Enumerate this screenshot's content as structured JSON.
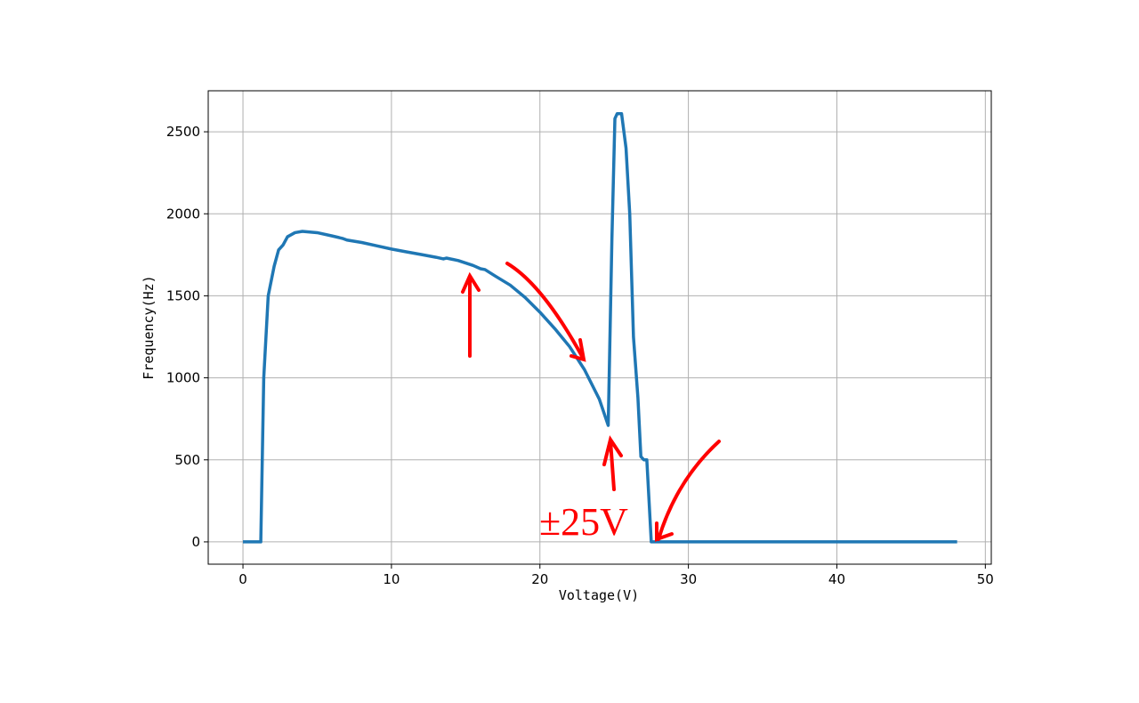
{
  "chart_data": {
    "type": "line",
    "x": [
      0,
      1.2,
      1.4,
      1.7,
      2.1,
      2.4,
      2.7,
      3.0,
      3.5,
      4.0,
      5.0,
      6.0,
      6.7,
      7.0,
      8,
      9,
      10,
      11,
      12,
      13,
      13.5,
      13.7,
      14.5,
      15,
      15.5,
      16,
      16.3,
      17,
      18,
      19,
      20,
      21,
      22,
      23,
      24,
      24.6,
      24.85,
      25.05,
      25.2,
      25.5,
      25.8,
      26.05,
      26.3,
      26.6,
      26.8,
      27.0,
      27.2,
      27.5,
      48.1
    ],
    "values": [
      0,
      0,
      1000,
      1500,
      1680,
      1780,
      1810,
      1860,
      1885,
      1893,
      1885,
      1865,
      1850,
      1840,
      1825,
      1805,
      1785,
      1768,
      1752,
      1735,
      1725,
      1730,
      1715,
      1700,
      1685,
      1665,
      1660,
      1620,
      1565,
      1490,
      1400,
      1300,
      1190,
      1050,
      870,
      710,
      1850,
      2580,
      2610,
      2610,
      2400,
      2000,
      1250,
      880,
      520,
      500,
      500,
      0,
      0
    ],
    "color": "#1f77b4",
    "xlabel": "Voltage(V)",
    "ylabel": "Frequency(Hz)",
    "xlim": [
      -2.34,
      50.4
    ],
    "ylim": [
      -136,
      2750
    ],
    "xticks": [
      0,
      10,
      20,
      30,
      40,
      50
    ],
    "yticks": [
      0,
      500,
      1000,
      1500,
      2000,
      2500
    ],
    "grid": true,
    "annotations": [
      "±25V"
    ]
  }
}
